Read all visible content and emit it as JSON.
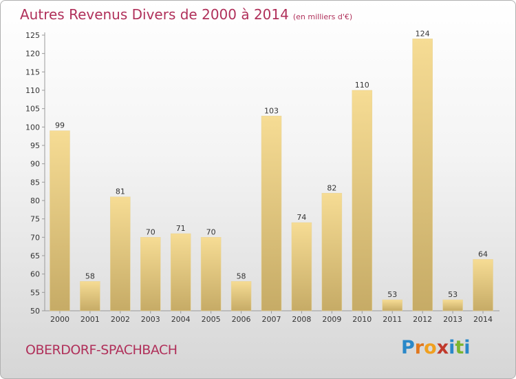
{
  "title": {
    "main": "Autres Revenus Divers de 2000 à 2014",
    "unit": "(en milliers d'€)"
  },
  "commune": "OBERDORF-SPACHBACH",
  "logo": {
    "text": "Proxiti",
    "letters": [
      {
        "char": "P",
        "color": "#2a88c8"
      },
      {
        "char": "r",
        "color": "#e0771e"
      },
      {
        "char": "o",
        "color": "#f0a020"
      },
      {
        "char": "x",
        "color": "#c0392b"
      },
      {
        "char": "i",
        "color": "#2a88c8"
      },
      {
        "char": "t",
        "color": "#7bb52e"
      },
      {
        "char": "i",
        "color": "#2a88c8"
      }
    ]
  },
  "chart_data": {
    "type": "bar",
    "title": "Autres Revenus Divers de 2000 à 2014",
    "subtitle": "(en milliers d'€)",
    "xlabel": "",
    "ylabel": "",
    "categories": [
      "2000",
      "2001",
      "2002",
      "2003",
      "2004",
      "2005",
      "2006",
      "2007",
      "2008",
      "2009",
      "2010",
      "2011",
      "2012",
      "2013",
      "2014"
    ],
    "values": [
      99,
      58,
      81,
      70,
      71,
      70,
      58,
      103,
      74,
      82,
      110,
      53,
      124,
      53,
      64
    ],
    "ylim": [
      50,
      125
    ],
    "yticks": [
      50,
      55,
      60,
      65,
      70,
      75,
      80,
      85,
      90,
      95,
      100,
      105,
      110,
      115,
      120,
      125
    ],
    "grid": false,
    "legend": "none",
    "colors": {
      "bar_top": "#f6dc94",
      "bar_bottom": "#c6ab66",
      "text": "#333333"
    }
  }
}
